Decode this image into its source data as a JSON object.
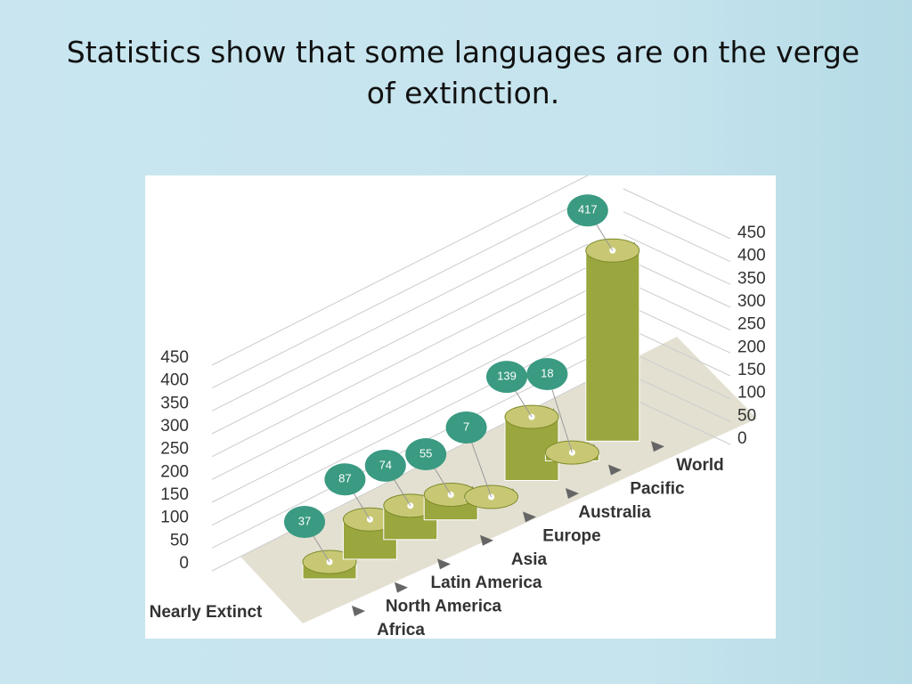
{
  "slide": {
    "title": "Statistics show that some languages are on the verge of extinction."
  },
  "chart_data": {
    "type": "bar3d",
    "x_label": "Nearly Extinct",
    "categories": [
      "Africa",
      "North America",
      "Latin America",
      "Asia",
      "Europe",
      "Australia",
      "Pacific",
      "World"
    ],
    "values": [
      37,
      87,
      74,
      55,
      7,
      139,
      18,
      417
    ],
    "color": "#9aa63e",
    "label_color": "#3a9a82",
    "ylim": [
      0,
      450
    ],
    "yticks": [
      0,
      50,
      100,
      150,
      200,
      250,
      300,
      350,
      400,
      450
    ],
    "y2lim": [
      0,
      450
    ],
    "y2ticks": [
      0,
      50,
      100,
      150,
      200,
      250,
      300,
      350,
      400,
      450
    ],
    "grid": true
  }
}
